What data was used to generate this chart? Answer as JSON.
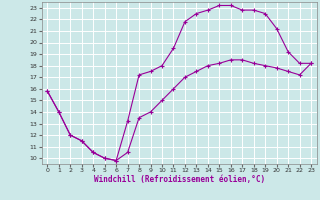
{
  "title": "",
  "xlabel": "Windchill (Refroidissement éolien,°C)",
  "ylabel": "",
  "bg_color": "#cce8e8",
  "grid_color": "#ffffff",
  "line_color": "#990099",
  "marker": "+",
  "xlim": [
    -0.5,
    23.5
  ],
  "ylim": [
    9.5,
    23.5
  ],
  "xticks": [
    0,
    1,
    2,
    3,
    4,
    5,
    6,
    7,
    8,
    9,
    10,
    11,
    12,
    13,
    14,
    15,
    16,
    17,
    18,
    19,
    20,
    21,
    22,
    23
  ],
  "yticks": [
    10,
    11,
    12,
    13,
    14,
    15,
    16,
    17,
    18,
    19,
    20,
    21,
    22,
    23
  ],
  "line1_x": [
    0,
    1,
    2,
    3,
    4,
    5,
    6,
    7,
    8,
    9,
    10,
    11,
    12,
    13,
    14,
    15,
    16,
    17,
    18,
    19,
    20,
    21,
    22,
    23
  ],
  "line1_y": [
    15.8,
    14.0,
    12.0,
    11.5,
    10.5,
    10.0,
    9.8,
    13.2,
    17.2,
    17.5,
    18.0,
    19.5,
    21.8,
    22.5,
    22.8,
    23.2,
    23.2,
    22.8,
    22.8,
    22.5,
    21.2,
    19.2,
    18.2,
    18.2
  ],
  "line2_x": [
    0,
    1,
    2,
    3,
    4,
    5,
    6,
    7,
    8,
    9,
    10,
    11,
    12,
    13,
    14,
    15,
    16,
    17,
    18,
    19,
    20,
    21,
    22,
    23
  ],
  "line2_y": [
    15.8,
    14.0,
    12.0,
    11.5,
    10.5,
    10.0,
    9.8,
    10.5,
    13.5,
    14.0,
    15.0,
    16.0,
    17.0,
    17.5,
    18.0,
    18.2,
    18.5,
    18.5,
    18.2,
    18.0,
    17.8,
    17.5,
    17.2,
    18.2
  ],
  "xlabel_fontsize": 5.5,
  "tick_fontsize": 4.5,
  "linewidth": 0.8,
  "markersize": 3,
  "markeredgewidth": 0.8
}
